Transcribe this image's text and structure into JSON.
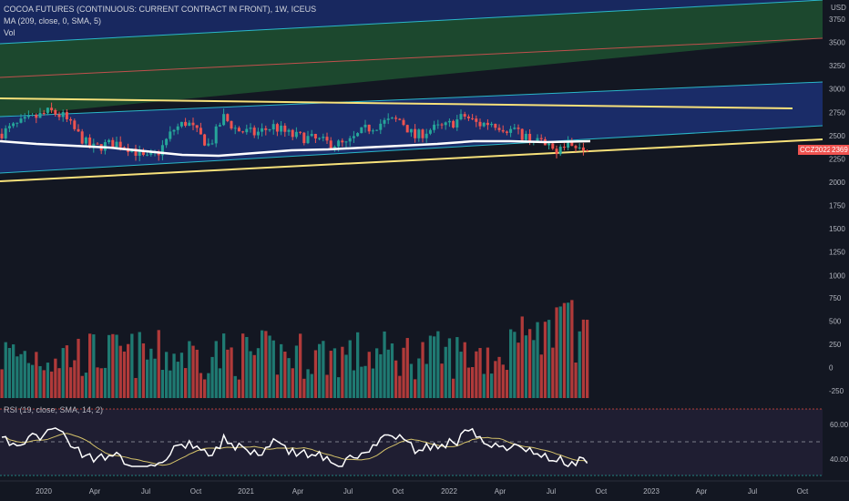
{
  "legend": {
    "title": "COCOA FUTURES (CONTINUOUS: CURRENT CONTRACT IN FRONT), 1W, ICEUS",
    "ma": "MA (209, close, 0, SMA, 5)",
    "vol": "Vol",
    "rsi": "RSI (19, close, SMA, 14, 2)"
  },
  "price_axis": {
    "currency": "USD",
    "ticks": [
      "3750",
      "3500",
      "3250",
      "3000",
      "2750",
      "2500",
      "2250",
      "2000",
      "1750",
      "1500",
      "1250",
      "1000",
      "750",
      "500",
      "250",
      "0",
      "-250"
    ]
  },
  "rsi_axis": {
    "ticks": [
      "60.00",
      "40.00"
    ]
  },
  "time_axis": {
    "labels": [
      "2020",
      "Apr",
      "Jul",
      "Oct",
      "2021",
      "Apr",
      "Jul",
      "Oct",
      "2022",
      "Apr",
      "Jul",
      "Oct",
      "2023",
      "Apr",
      "Jul",
      "Oct"
    ]
  },
  "symbol_badge": {
    "symbol": "CCZ2022",
    "price": "2369"
  },
  "colors": {
    "background": "#131722",
    "up": "#26a69a",
    "down": "#ef5350",
    "ma": "#ffffff",
    "trendline": "#f7e17a",
    "channel_blue": "#1e3a8a",
    "channel_green": "#1f5130",
    "rsi_line": "#ffffff",
    "rsi_signal": "#d4c26a",
    "rsi_band": "#2a2540"
  },
  "chart_data": {
    "type": "candlestick",
    "interval": "1W",
    "x_range": [
      "2019-12",
      "2023-10"
    ],
    "price_axis_range": [
      -300,
      3850
    ],
    "visible_close_range": [
      2100,
      2850
    ],
    "last_price": 2369,
    "ma_period": 209,
    "rsi_period": 19,
    "rsi_range": [
      30,
      75
    ]
  }
}
